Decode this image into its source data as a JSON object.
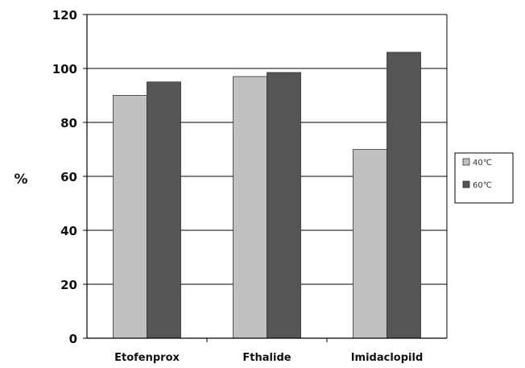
{
  "chart_data": {
    "type": "bar",
    "categories": [
      "Etofenprox",
      "Fthalide",
      "Imidaclopild"
    ],
    "series": [
      {
        "name": "40℃",
        "values": [
          90,
          97,
          70
        ],
        "color": "#c0c0c0"
      },
      {
        "name": "60℃",
        "values": [
          95,
          98.5,
          106
        ],
        "color": "#555555"
      }
    ],
    "ylabel": "%",
    "xlabel": "",
    "title": "",
    "ylim": [
      0,
      120
    ],
    "yticks": [
      0,
      20,
      40,
      60,
      80,
      100,
      120
    ],
    "grid": true,
    "legend_position": "right"
  }
}
